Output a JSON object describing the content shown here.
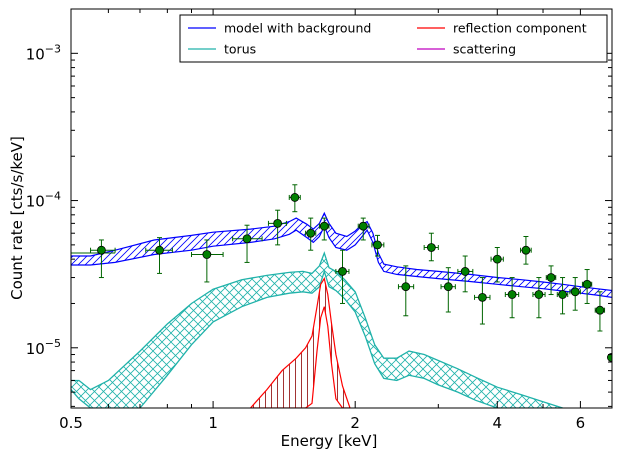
{
  "chart_data": {
    "type": "scatter",
    "xlabel": "Energy [keV]",
    "ylabel": "Count rate [cts/s/keV]",
    "xscale": "log",
    "yscale": "log",
    "xlim": [
      0.5,
      7.0
    ],
    "ylim": [
      3.9e-06,
      0.002
    ],
    "x_ticks": [
      {
        "value": 0.5,
        "label": "0.5"
      },
      {
        "value": 1,
        "label": "1"
      },
      {
        "value": 2,
        "label": "2"
      },
      {
        "value": 4,
        "label": "4"
      },
      {
        "value": 6,
        "label": "6"
      }
    ],
    "y_ticks": [
      {
        "value": 1e-05,
        "base": "10",
        "exp": "−5"
      },
      {
        "value": 0.0001,
        "base": "10",
        "exp": "−4"
      },
      {
        "value": 0.001,
        "base": "10",
        "exp": "−3"
      }
    ],
    "grid": false,
    "legend_position": "top-right",
    "colors": {
      "data": "#006400",
      "data_fill": "#008000",
      "model": "#0000ff",
      "torus": "#20b2aa",
      "reflection": "#ff0000",
      "reflection_hatch": "#8b0000",
      "scattering": "#bf00bf"
    },
    "legend": [
      {
        "label": "model with background",
        "color": "#0000ff"
      },
      {
        "label": "reflection component",
        "color": "#ff0000"
      },
      {
        "label": "torus",
        "color": "#20b2aa"
      },
      {
        "label": "scattering",
        "color": "#bf00bf"
      }
    ],
    "data_points": [
      {
        "x": 0.58,
        "xlo": 0.55,
        "xhi": 0.62,
        "y": 4.6e-05,
        "ylo": 3e-05,
        "yhi": 5.4e-05
      },
      {
        "x": 0.77,
        "xlo": 0.72,
        "xhi": 0.82,
        "y": 4.6e-05,
        "ylo": 3.2e-05,
        "yhi": 5.6e-05
      },
      {
        "x": 0.97,
        "xlo": 0.9,
        "xhi": 1.05,
        "y": 4.3e-05,
        "ylo": 2.8e-05,
        "yhi": 5.4e-05
      },
      {
        "x": 1.18,
        "xlo": 1.1,
        "xhi": 1.27,
        "y": 5.5e-05,
        "ylo": 3.8e-05,
        "yhi": 6.8e-05
      },
      {
        "x": 1.37,
        "xlo": 1.31,
        "xhi": 1.43,
        "y": 7e-05,
        "ylo": 5e-05,
        "yhi": 8.6e-05
      },
      {
        "x": 1.49,
        "xlo": 1.45,
        "xhi": 1.53,
        "y": 0.000105,
        "ylo": 8.4e-05,
        "yhi": 0.000128
      },
      {
        "x": 1.61,
        "xlo": 1.57,
        "xhi": 1.65,
        "y": 6e-05,
        "ylo": 4.6e-05,
        "yhi": 7.6e-05
      },
      {
        "x": 1.72,
        "xlo": 1.68,
        "xhi": 1.76,
        "y": 6.7e-05,
        "ylo": 5.4e-05,
        "yhi": 7.6e-05
      },
      {
        "x": 1.88,
        "xlo": 1.82,
        "xhi": 1.94,
        "y": 3.3e-05,
        "ylo": 2e-05,
        "yhi": 4.6e-05
      },
      {
        "x": 2.08,
        "xlo": 2.03,
        "xhi": 2.14,
        "y": 6.7e-05,
        "ylo": 5.4e-05,
        "yhi": 7.6e-05
      },
      {
        "x": 2.23,
        "xlo": 2.17,
        "xhi": 2.3,
        "y": 5e-05,
        "ylo": 4.2e-05,
        "yhi": 5.8e-05
      },
      {
        "x": 2.56,
        "xlo": 2.47,
        "xhi": 2.66,
        "y": 2.6e-05,
        "ylo": 1.65e-05,
        "yhi": 3.6e-05
      },
      {
        "x": 2.9,
        "xlo": 2.8,
        "xhi": 3.0,
        "y": 4.8e-05,
        "ylo": 3.9e-05,
        "yhi": 6e-05
      },
      {
        "x": 3.15,
        "xlo": 3.04,
        "xhi": 3.26,
        "y": 2.6e-05,
        "ylo": 1.75e-05,
        "yhi": 3.5e-05
      },
      {
        "x": 3.42,
        "xlo": 3.3,
        "xhi": 3.55,
        "y": 3.3e-05,
        "ylo": 2.4e-05,
        "yhi": 4.2e-05
      },
      {
        "x": 3.72,
        "xlo": 3.58,
        "xhi": 3.86,
        "y": 2.2e-05,
        "ylo": 1.45e-05,
        "yhi": 3e-05
      },
      {
        "x": 4.0,
        "xlo": 3.88,
        "xhi": 4.12,
        "y": 4e-05,
        "ylo": 2.8e-05,
        "yhi": 4.8e-05
      },
      {
        "x": 4.3,
        "xlo": 4.16,
        "xhi": 4.44,
        "y": 2.3e-05,
        "ylo": 1.6e-05,
        "yhi": 3e-05
      },
      {
        "x": 4.6,
        "xlo": 4.48,
        "xhi": 4.72,
        "y": 4.6e-05,
        "ylo": 3.7e-05,
        "yhi": 5.7e-05
      },
      {
        "x": 4.9,
        "xlo": 4.76,
        "xhi": 5.05,
        "y": 2.3e-05,
        "ylo": 1.6e-05,
        "yhi": 3e-05
      },
      {
        "x": 5.2,
        "xlo": 5.08,
        "xhi": 5.32,
        "y": 3e-05,
        "ylo": 2.3e-05,
        "yhi": 3.6e-05
      },
      {
        "x": 5.5,
        "xlo": 5.36,
        "xhi": 5.64,
        "y": 2.3e-05,
        "ylo": 1.7e-05,
        "yhi": 3e-05
      },
      {
        "x": 5.85,
        "xlo": 5.7,
        "xhi": 6.0,
        "y": 2.4e-05,
        "ylo": 1.8e-05,
        "yhi": 3e-05
      },
      {
        "x": 6.2,
        "xlo": 6.06,
        "xhi": 6.34,
        "y": 2.7e-05,
        "ylo": 2e-05,
        "yhi": 3.4e-05
      },
      {
        "x": 6.6,
        "xlo": 6.45,
        "xhi": 6.75,
        "y": 1.8e-05,
        "ylo": 1.3e-05,
        "yhi": 2.4e-05
      },
      {
        "x": 6.98,
        "xlo": 6.9,
        "xhi": 7.05,
        "y": 8.6e-06,
        "ylo": 8.6e-06,
        "yhi": 8.6e-06
      }
    ],
    "background_segment": {
      "x": [
        0.5,
        0.62
      ],
      "y": 4.4e-05
    },
    "model_band": {
      "x": [
        0.5,
        0.55,
        0.62,
        0.75,
        0.9,
        1.0,
        1.2,
        1.35,
        1.45,
        1.5,
        1.58,
        1.63,
        1.68,
        1.72,
        1.76,
        1.82,
        1.92,
        2.0,
        2.06,
        2.12,
        2.18,
        2.24,
        2.3,
        2.45,
        2.7,
        3.0,
        3.5,
        4.0,
        4.5,
        5.0,
        5.5,
        6.0,
        6.5,
        7.0
      ],
      "upper": [
        4.2e-05,
        4.2e-05,
        4.6e-05,
        5.4e-05,
        5.8e-05,
        6.1e-05,
        6.4e-05,
        6.7e-05,
        7.2e-05,
        7.6e-05,
        6.9e-05,
        6.4e-05,
        7e-05,
        8.2e-05,
        7e-05,
        6e-05,
        5.7e-05,
        6.2e-05,
        6.8e-05,
        7.2e-05,
        6e-05,
        4.4e-05,
        3.7e-05,
        3.55e-05,
        3.4e-05,
        3.3e-05,
        3.15e-05,
        3e-05,
        2.9e-05,
        2.8e-05,
        2.7e-05,
        2.6e-05,
        2.52e-05,
        2.45e-05
      ],
      "lower": [
        3.65e-05,
        3.65e-05,
        3.8e-05,
        4.3e-05,
        4.6e-05,
        4.9e-05,
        5.2e-05,
        5.5e-05,
        5.9e-05,
        6.3e-05,
        5.6e-05,
        5.2e-05,
        5.7e-05,
        6.7e-05,
        5.6e-05,
        4.8e-05,
        4.6e-05,
        5e-05,
        5.6e-05,
        6.3e-05,
        5.2e-05,
        3.8e-05,
        3.3e-05,
        3.15e-05,
        3.05e-05,
        2.95e-05,
        2.82e-05,
        2.7e-05,
        2.6e-05,
        2.52e-05,
        2.43e-05,
        2.35e-05,
        2.28e-05,
        2.2e-05
      ]
    },
    "torus_band": {
      "x": [
        0.5,
        0.52,
        0.55,
        0.6,
        0.7,
        0.8,
        0.9,
        1.0,
        1.15,
        1.3,
        1.45,
        1.55,
        1.62,
        1.68,
        1.72,
        1.76,
        1.82,
        1.9,
        2.0,
        2.1,
        2.2,
        2.3,
        2.45,
        2.6,
        2.8,
        3.0,
        3.3,
        3.6,
        4.0,
        4.5,
        5.0,
        5.5
      ],
      "upper": [
        6e-06,
        6e-06,
        5.2e-06,
        6e-06,
        9.5e-06,
        1.45e-05,
        2e-05,
        2.5e-05,
        2.9e-05,
        3.1e-05,
        3.25e-05,
        3.3e-05,
        3.2e-05,
        3.6e-05,
        4.4e-05,
        3.5e-05,
        3.3e-05,
        2.9e-05,
        2.4e-05,
        1.6e-05,
        1.05e-05,
        8.5e-06,
        8.5e-06,
        9.5e-06,
        9e-06,
        8.2e-06,
        7.2e-06,
        6.3e-06,
        5.4e-06,
        4.8e-06,
        4.3e-06,
        3.9e-06
      ],
      "lower": [
        5.2e-06,
        4.5e-06,
        3.9e-06,
        3.9e-06,
        3.9e-06,
        6.5e-06,
        1.05e-05,
        1.5e-05,
        1.9e-05,
        2.2e-05,
        2.35e-05,
        2.4e-05,
        2.35e-05,
        2.6e-05,
        3.3e-05,
        2.6e-05,
        2.45e-05,
        2.15e-05,
        1.75e-05,
        1.2e-05,
        7.8e-06,
        6.2e-06,
        6e-06,
        6.5e-06,
        6.2e-06,
        5.6e-06,
        5e-06,
        4.4e-06,
        3.9e-06,
        3.9e-06,
        3.9e-06,
        3.9e-06
      ]
    },
    "reflection_band": {
      "x": [
        1.2,
        1.3,
        1.4,
        1.5,
        1.57,
        1.62,
        1.66,
        1.69,
        1.72,
        1.75,
        1.78,
        1.82,
        1.88,
        1.95
      ],
      "upper": [
        3.9e-06,
        5.2e-06,
        7e-06,
        8.5e-06,
        1e-05,
        1.2e-05,
        1.9e-05,
        2.7e-05,
        2.95e-05,
        2.3e-05,
        1.5e-05,
        9e-06,
        5.5e-06,
        3.9e-06
      ],
      "lower": [
        3.9e-06,
        3.9e-06,
        3.9e-06,
        3.9e-06,
        3.9e-06,
        4.2e-06,
        9.5e-06,
        1.6e-05,
        1.9e-05,
        1.4e-05,
        8e-06,
        4.5e-06,
        3.9e-06,
        3.9e-06
      ]
    }
  }
}
